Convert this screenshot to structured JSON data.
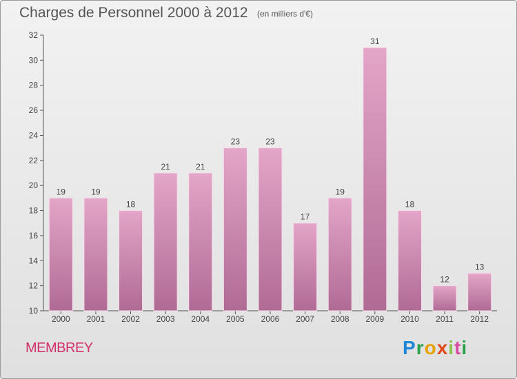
{
  "title": "Charges de Personnel 2000 à 2012",
  "subtitle": "(en milliers d'€)",
  "place": "MEMBREY",
  "brand": "Proxiti",
  "colors": {
    "bar_top": "#e3a5c8",
    "bar_bottom": "#b06b95",
    "axis": "#555555",
    "place": "#d1306a"
  },
  "chart_data": {
    "type": "bar",
    "title": "Charges de Personnel 2000 à 2012",
    "categories": [
      "2000",
      "2001",
      "2002",
      "2003",
      "2004",
      "2005",
      "2006",
      "2007",
      "2008",
      "2009",
      "2010",
      "2011",
      "2012"
    ],
    "values": [
      19,
      19,
      18,
      21,
      21,
      23,
      23,
      17,
      19,
      31,
      18,
      12,
      13
    ],
    "ylim": [
      10,
      32
    ],
    "yticks": [
      10,
      12,
      14,
      16,
      18,
      20,
      22,
      24,
      26,
      28,
      30,
      32
    ],
    "grid": false,
    "data_labels": true
  }
}
